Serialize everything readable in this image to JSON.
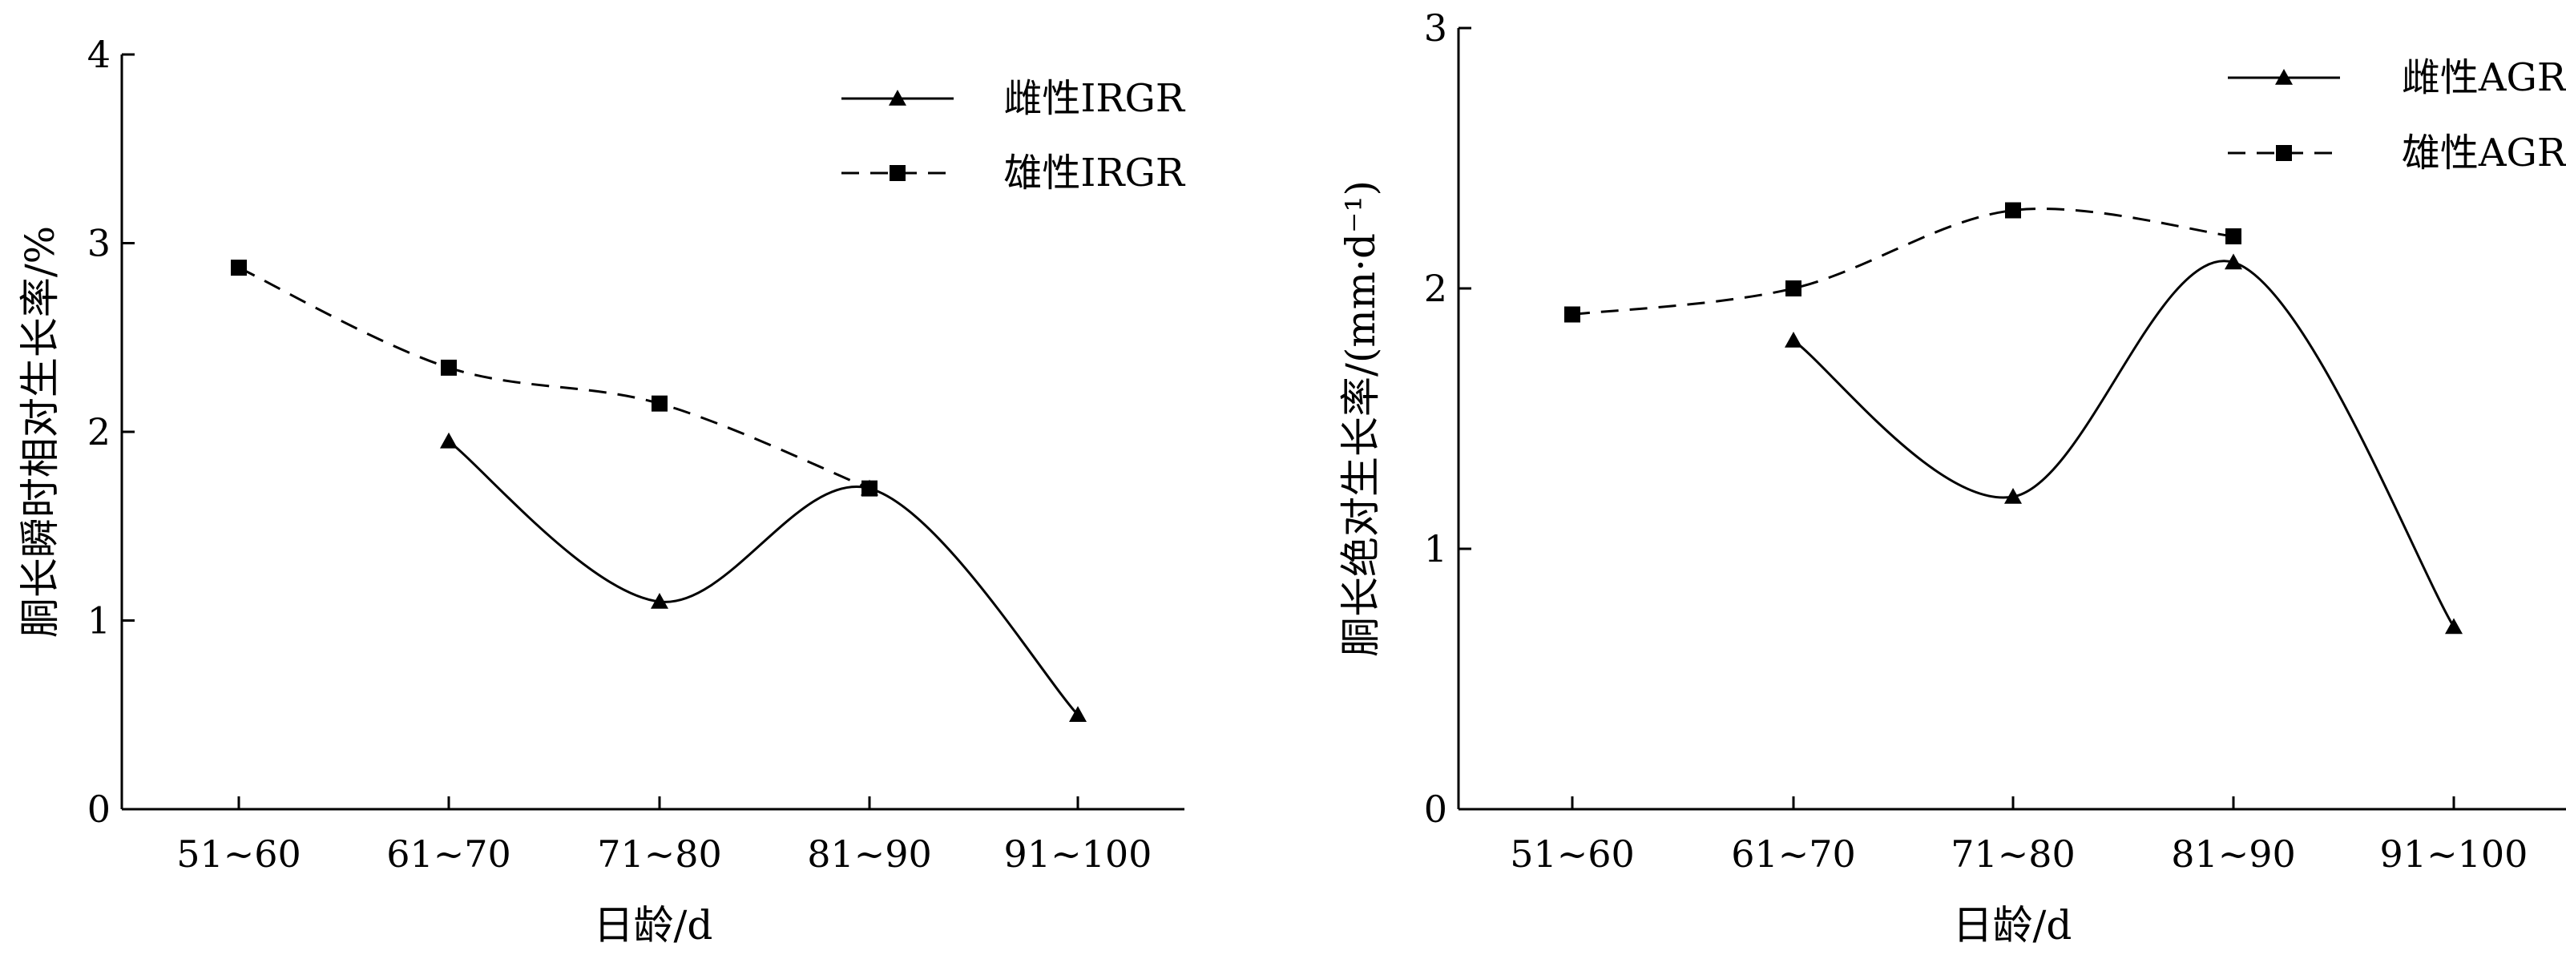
{
  "chart_data": [
    {
      "type": "line",
      "xlabel": "日龄/d",
      "ylabel": "胴长瞬时相对生长率/%",
      "categories": [
        "51~60",
        "61~70",
        "71~80",
        "81~90",
        "91~100"
      ],
      "ylim": [
        0,
        4
      ],
      "yticks": [
        "0",
        "1",
        "2",
        "3",
        "4"
      ],
      "smooth": true,
      "legend_position": "top-right",
      "series": [
        {
          "name": "雌性IRGR",
          "marker": "triangle",
          "line_style": "solid",
          "values": [
            null,
            1.95,
            1.1,
            1.7,
            0.5
          ]
        },
        {
          "name": "雄性IRGR",
          "marker": "square",
          "line_style": "dashed",
          "values": [
            2.87,
            2.34,
            2.15,
            1.7,
            null
          ]
        }
      ]
    },
    {
      "type": "line",
      "xlabel": "日龄/d",
      "ylabel": "胴长绝对生长率/(mm·d⁻¹)",
      "categories": [
        "51~60",
        "61~70",
        "71~80",
        "81~90",
        "91~100"
      ],
      "ylim": [
        0,
        3
      ],
      "yticks": [
        "0",
        "1",
        "2",
        "3"
      ],
      "smooth": true,
      "legend_position": "top-right",
      "series": [
        {
          "name": "雌性AGR",
          "marker": "triangle",
          "line_style": "solid",
          "values": [
            null,
            1.8,
            1.2,
            2.1,
            0.7
          ]
        },
        {
          "name": "雄性AGR",
          "marker": "square",
          "line_style": "dashed",
          "values": [
            1.9,
            2.0,
            2.3,
            2.2,
            null
          ]
        }
      ]
    }
  ]
}
